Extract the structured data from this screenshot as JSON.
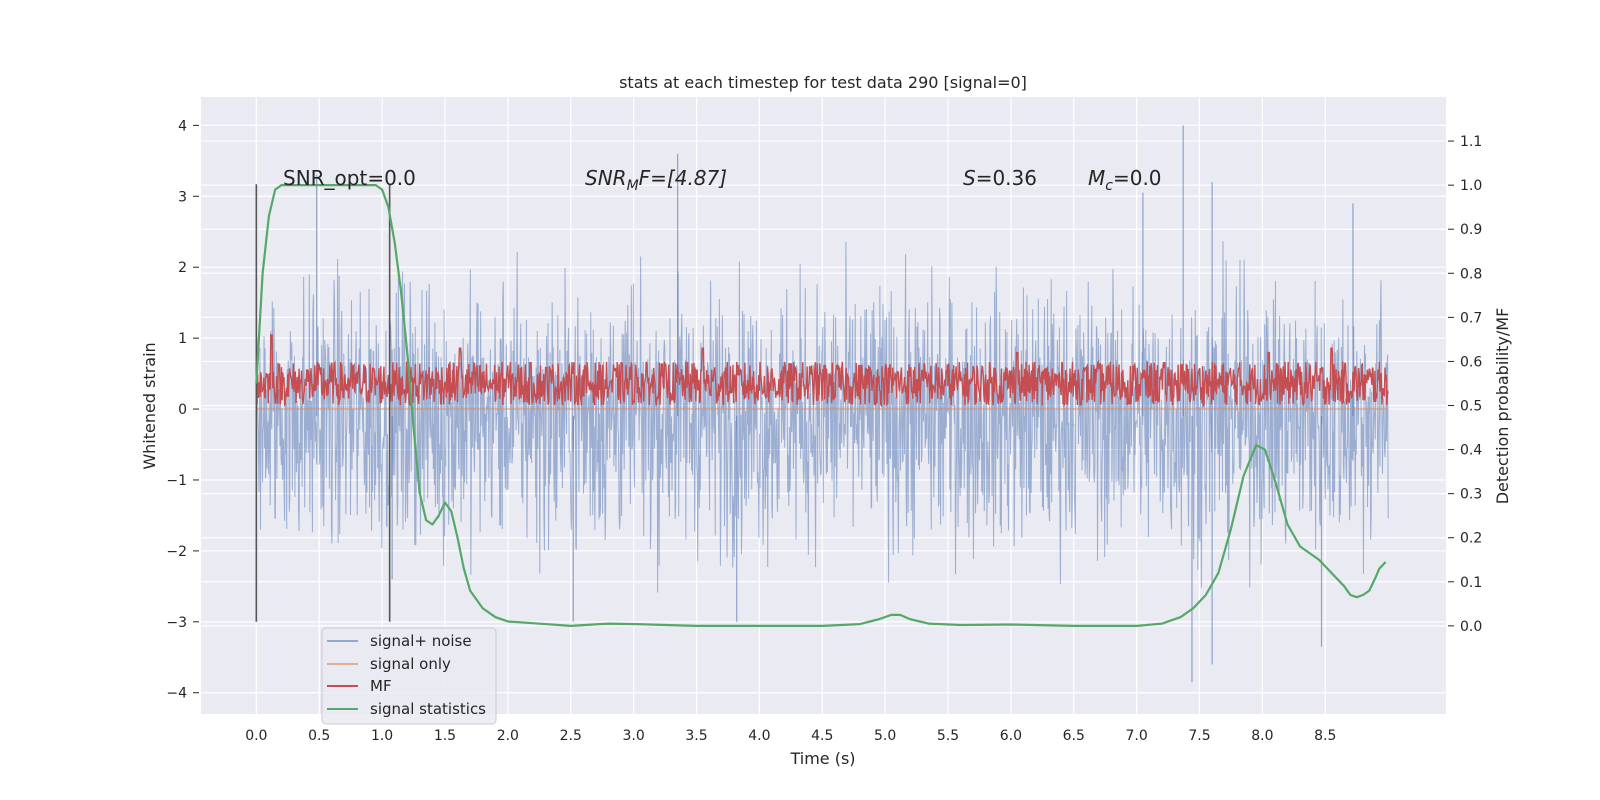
{
  "chart_data": {
    "type": "line",
    "title": "stats at each timestep for test data 290 [signal=0]",
    "xlabel": "Time (s)",
    "ylabel_left": "Whitened strain",
    "ylabel_right": "Detection probability/MF",
    "xlim": [
      -0.44,
      9.46
    ],
    "ylim_left": [
      -4.3,
      4.4
    ],
    "ylim_right": [
      -0.2,
      1.2
    ],
    "xticks": [
      "0.0",
      "0.5",
      "1.0",
      "1.5",
      "2.0",
      "2.5",
      "3.0",
      "3.5",
      "4.0",
      "4.5",
      "5.0",
      "5.5",
      "6.0",
      "6.5",
      "7.0",
      "7.5",
      "8.0",
      "8.5"
    ],
    "yticks_left": [
      "4",
      "3",
      "2",
      "1",
      "0",
      "−1",
      "−2",
      "−3",
      "−4"
    ],
    "yticks_right": [
      "1.1",
      "1.0",
      "0.9",
      "0.8",
      "0.7",
      "0.6",
      "0.5",
      "0.4",
      "0.3",
      "0.2",
      "0.1",
      "0.0"
    ],
    "grid": true,
    "legend_position": "lower-left",
    "annotations": {
      "snr_opt": "SNR_opt=0.0",
      "snr_mf_base": "SNR",
      "snr_mf_sub": "M",
      "snr_mf_rest": "F=[4.87]",
      "s_var": "S",
      "s_val": "=0.36",
      "mc_var": "M",
      "mc_sub": "c",
      "mc_val": "=0.0"
    },
    "marker_lines_x": [
      0.0,
      1.06
    ],
    "series": [
      {
        "name": "signal+ noise",
        "axis": "left",
        "color": "#4c72b0",
        "style": "noise band, roughly symmetric about -0.1, |y| mostly < 2.5",
        "envelope_x": [
          0.0,
          1.0,
          2.0,
          3.0,
          4.0,
          5.0,
          6.0,
          7.0,
          8.0,
          9.0
        ],
        "envelope_typical": [
          2.3,
          2.3,
          2.3,
          2.3,
          2.3,
          2.3,
          2.3,
          2.3,
          2.3,
          2.3
        ],
        "spikes": [
          {
            "x": 0.48,
            "y": 3.3
          },
          {
            "x": 1.08,
            "y": -2.4
          },
          {
            "x": 2.52,
            "y": -3.0
          },
          {
            "x": 3.35,
            "y": 3.6
          },
          {
            "x": 3.82,
            "y": -3.0
          },
          {
            "x": 7.05,
            "y": 3.05
          },
          {
            "x": 7.37,
            "y": 4.0
          },
          {
            "x": 7.44,
            "y": -3.85
          },
          {
            "x": 7.6,
            "y": 3.2
          },
          {
            "x": 7.6,
            "y": -3.6
          },
          {
            "x": 8.47,
            "y": -3.35
          },
          {
            "x": 8.72,
            "y": 2.9
          }
        ]
      },
      {
        "name": "signal only",
        "axis": "left",
        "color": "#dd8452",
        "x": [
          0.0,
          9.0
        ],
        "y": [
          0.0,
          0.0
        ]
      },
      {
        "name": "MF",
        "axis": "right",
        "color": "#c44e52",
        "style": "dense band between 0.5 and 0.6, occasional peaks",
        "band_low": 0.5,
        "band_high": 0.6,
        "peaks": [
          {
            "x": 0.12,
            "y": 0.66
          },
          {
            "x": 1.62,
            "y": 0.63
          },
          {
            "x": 3.55,
            "y": 0.63
          },
          {
            "x": 6.05,
            "y": 0.62
          },
          {
            "x": 8.05,
            "y": 0.62
          },
          {
            "x": 8.55,
            "y": 0.63
          }
        ]
      },
      {
        "name": "signal statistics",
        "axis": "right",
        "color": "#55a868",
        "x": [
          0.0,
          0.05,
          0.1,
          0.15,
          0.2,
          0.3,
          0.5,
          0.7,
          0.85,
          0.95,
          1.0,
          1.05,
          1.1,
          1.15,
          1.2,
          1.25,
          1.3,
          1.35,
          1.4,
          1.45,
          1.5,
          1.55,
          1.6,
          1.65,
          1.7,
          1.8,
          1.9,
          2.0,
          2.2,
          2.5,
          2.8,
          3.0,
          3.5,
          4.0,
          4.5,
          4.8,
          4.95,
          5.05,
          5.12,
          5.2,
          5.35,
          5.6,
          6.0,
          6.5,
          7.0,
          7.2,
          7.35,
          7.45,
          7.55,
          7.65,
          7.75,
          7.85,
          7.95,
          8.02,
          8.1,
          8.2,
          8.3,
          8.45,
          8.55,
          8.65,
          8.7,
          8.75,
          8.8,
          8.85,
          8.9,
          8.93,
          8.98
        ],
        "y": [
          0.55,
          0.8,
          0.93,
          0.99,
          1.0,
          1.0,
          1.0,
          1.0,
          1.0,
          1.0,
          0.99,
          0.95,
          0.87,
          0.76,
          0.62,
          0.45,
          0.3,
          0.24,
          0.23,
          0.25,
          0.28,
          0.26,
          0.2,
          0.13,
          0.08,
          0.04,
          0.02,
          0.01,
          0.006,
          0.0,
          0.005,
          0.004,
          0.0,
          0.0,
          0.0,
          0.004,
          0.015,
          0.025,
          0.025,
          0.015,
          0.005,
          0.002,
          0.003,
          0.0,
          0.0,
          0.005,
          0.02,
          0.04,
          0.07,
          0.12,
          0.22,
          0.34,
          0.41,
          0.4,
          0.33,
          0.23,
          0.18,
          0.15,
          0.12,
          0.09,
          0.07,
          0.065,
          0.07,
          0.08,
          0.11,
          0.13,
          0.145
        ]
      }
    ]
  }
}
